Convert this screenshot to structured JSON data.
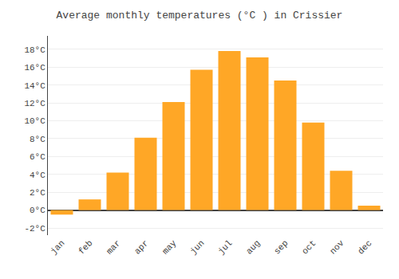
{
  "chart_data": {
    "type": "bar",
    "title": "Average monthly temperatures (°C ) in Crissier",
    "categories": [
      "jan",
      "feb",
      "mar",
      "apr",
      "may",
      "jun",
      "jul",
      "aug",
      "sep",
      "oct",
      "nov",
      "dec"
    ],
    "values": [
      -0.5,
      1.2,
      4.2,
      8.1,
      12.1,
      15.7,
      17.8,
      17.1,
      14.5,
      9.8,
      4.4,
      0.5
    ],
    "color": "#FFA726",
    "ylim": [
      -2.8,
      19.5
    ],
    "yticks": [
      {
        "value": -2,
        "label": "-2°C"
      },
      {
        "value": 0,
        "label": "0°C"
      },
      {
        "value": 2,
        "label": "2°C"
      },
      {
        "value": 4,
        "label": "4°C"
      },
      {
        "value": 6,
        "label": "6°C"
      },
      {
        "value": 8,
        "label": "8°C"
      },
      {
        "value": 10,
        "label": "10°C"
      },
      {
        "value": 12,
        "label": "12°C"
      },
      {
        "value": 14,
        "label": "14°C"
      },
      {
        "value": 16,
        "label": "16°C"
      },
      {
        "value": 18,
        "label": "18°C"
      }
    ],
    "grid": true
  }
}
